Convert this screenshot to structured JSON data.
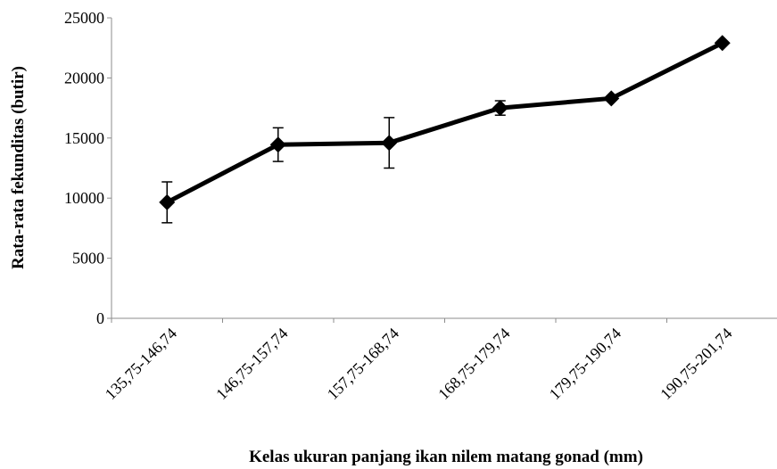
{
  "chart_data": {
    "type": "line",
    "categories": [
      "135,75-146,74",
      "146,75-157,74",
      "157,75-168,74",
      "168,75-179,74",
      "179,75-190,74",
      "190,75-201,74"
    ],
    "series": [
      {
        "values": [
          9650,
          14450,
          14600,
          17500,
          18300,
          22900
        ],
        "error": [
          1700,
          1400,
          2100,
          600,
          0,
          0
        ],
        "color": "#000000",
        "marker": "diamond"
      }
    ],
    "title": "",
    "xlabel": "Kelas ukuran panjang ikan nilem matang gonad (mm)",
    "ylabel": "Rata-rata fekunditas (butir)",
    "ylim": [
      0,
      25000
    ],
    "yticks": [
      0,
      5000,
      10000,
      15000,
      20000,
      25000
    ],
    "grid": false,
    "legend": "none"
  }
}
